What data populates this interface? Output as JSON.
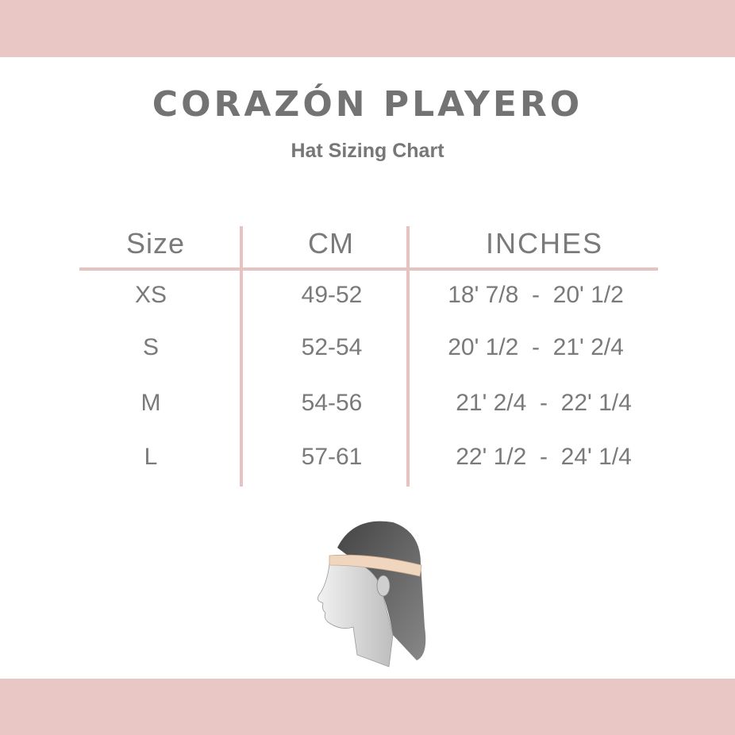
{
  "brand": {
    "title": "CORAZÓN PLAYERO",
    "subtitle": "Hat Sizing Chart"
  },
  "colors": {
    "band": "#e8c7c4",
    "rule": "#e6c2c0",
    "text": "#777777"
  },
  "table": {
    "headers": [
      "Size",
      "CM",
      "INCHES"
    ],
    "rows": [
      {
        "size": "XS",
        "cm": "49-52",
        "inches": "18' 7/8  -  20' 1/2"
      },
      {
        "size": "S",
        "cm": "52-54",
        "inches": "20' 1/2  -  21' 2/4"
      },
      {
        "size": "M",
        "cm": "54-56",
        "inches": "21' 2/4  -  22' 1/4"
      },
      {
        "size": "L",
        "cm": "57-61",
        "inches": "22' 1/2  -  24' 1/4"
      }
    ]
  },
  "illustration": {
    "icon": "head-measuring-tape-illustration"
  }
}
